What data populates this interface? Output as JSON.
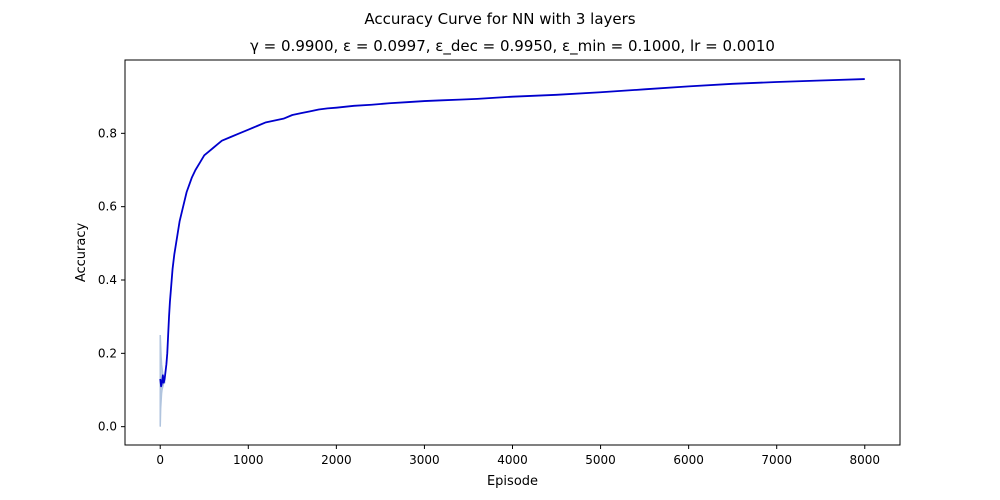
{
  "chart_data": {
    "type": "line",
    "suptitle": "Accuracy Curve for NN with 3 layers",
    "title": "γ = 0.9900, ε = 0.0997, ε_dec = 0.9950, ε_min = 0.1000, lr = 0.0010",
    "xlabel": "Episode",
    "ylabel": "Accuracy",
    "xlim": [
      -400,
      8400
    ],
    "ylim": [
      -0.05,
      1.0
    ],
    "xticks": [
      0,
      1000,
      2000,
      3000,
      4000,
      5000,
      6000,
      7000,
      8000
    ],
    "yticks": [
      0.0,
      0.2,
      0.4,
      0.6,
      0.8
    ],
    "xtick_labels": [
      "0",
      "1000",
      "2000",
      "3000",
      "4000",
      "5000",
      "6000",
      "7000",
      "8000"
    ],
    "ytick_labels": [
      "0.0",
      "0.2",
      "0.4",
      "0.6",
      "0.8"
    ],
    "grid": false,
    "legend": "none",
    "colors": {
      "line": "#0000cd",
      "band": "#b0c4de",
      "axes": "#000000",
      "background": "#ffffff"
    },
    "band": {
      "x": [
        0,
        5,
        10,
        15,
        20,
        30,
        40,
        50
      ],
      "upper": [
        0.25,
        0.22,
        0.19,
        0.17,
        0.16,
        0.14,
        0.13,
        0.13
      ],
      "lower": [
        0.0,
        0.05,
        0.07,
        0.09,
        0.1,
        0.11,
        0.12,
        0.12
      ]
    },
    "series": [
      {
        "x": [
          0,
          10,
          20,
          30,
          40,
          50,
          60,
          70,
          80,
          90,
          100,
          110,
          120,
          140,
          160,
          180,
          200,
          220,
          250,
          280,
          300,
          330,
          360,
          400,
          450,
          500,
          550,
          600,
          650,
          700,
          800,
          900,
          1000,
          1100,
          1200,
          1300,
          1400,
          1500,
          1600,
          1700,
          1800,
          1900,
          2000,
          2200,
          2400,
          2600,
          2800,
          3000,
          3200,
          3400,
          3600,
          3800,
          4000,
          4200,
          4500,
          5000,
          5500,
          6000,
          6500,
          7000,
          7500,
          8000
        ],
        "values": [
          0.13,
          0.11,
          0.12,
          0.14,
          0.12,
          0.13,
          0.15,
          0.17,
          0.2,
          0.25,
          0.3,
          0.34,
          0.37,
          0.43,
          0.47,
          0.5,
          0.53,
          0.56,
          0.59,
          0.62,
          0.64,
          0.66,
          0.68,
          0.7,
          0.72,
          0.74,
          0.75,
          0.76,
          0.77,
          0.78,
          0.79,
          0.8,
          0.81,
          0.82,
          0.83,
          0.835,
          0.84,
          0.85,
          0.855,
          0.86,
          0.865,
          0.868,
          0.87,
          0.875,
          0.878,
          0.882,
          0.885,
          0.888,
          0.89,
          0.892,
          0.894,
          0.897,
          0.9,
          0.902,
          0.905,
          0.912,
          0.92,
          0.928,
          0.935,
          0.94,
          0.944,
          0.948
        ]
      }
    ]
  }
}
